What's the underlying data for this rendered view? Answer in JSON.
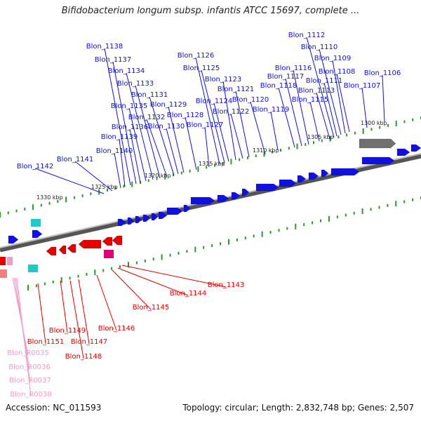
{
  "title": "Bifidobacterium longum subsp. infantis ATCC 15697, complete ...",
  "footer": {
    "accession": "Accession: NC_011593",
    "summary": "Topology: circular; Length: 2,832,748 bp; Genes: 2,507"
  },
  "colors": {
    "forward_gene": "#1010e0",
    "reverse_gene": "#e80000",
    "trna": "#f49ac8",
    "cyan": "#20c8c8",
    "magenta": "#e0007a",
    "grey_feature": "#707070",
    "ruler": "#2a9a2a",
    "backbone": "#808080"
  },
  "scale_labels": [
    "1300 kbp",
    "1305 kbp",
    "1310 kbp",
    "1315 kbp",
    "1320 kbp",
    "1325 kbp",
    "1330 kbp"
  ],
  "upper_labels": [
    "Blon_1106",
    "Blon_1107",
    "Blon_1108",
    "Blon_1109",
    "Blon_1110",
    "Blon_1111",
    "Blon_1112",
    "Blon_1113",
    "Blon_1115",
    "Blon_1116",
    "Blon_1117",
    "Blon_1118",
    "Blon_1119",
    "Blon_1120",
    "Blon_1121",
    "Blon_1122",
    "Blon_1123",
    "Blon_1124",
    "Blon_1125",
    "Blon_1126",
    "Blon_1127",
    "Blon_1128",
    "Blon_1129",
    "Blon_1130",
    "Blon_1131",
    "Blon_1132",
    "Blon_1133",
    "Blon_1134",
    "Blon_1135",
    "Blon_1136",
    "Blon_1137",
    "Blon_1138",
    "Blon_1139",
    "Blon_1140",
    "Blon_1141",
    "Blon_1142"
  ],
  "lower_labels": [
    "Blon_1143",
    "Blon_1144",
    "Blon_1145",
    "Blon_1146",
    "Blon_1147",
    "Blon_1148",
    "Blon_1149",
    "Blon_1151"
  ],
  "rna_labels": [
    "Blon_R0035",
    "Blon_R0036",
    "Blon_R0037",
    "Blon_R0038"
  ]
}
